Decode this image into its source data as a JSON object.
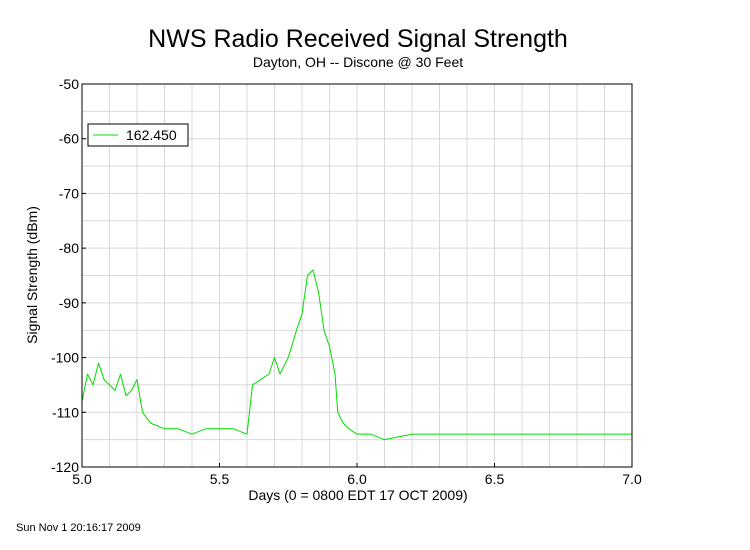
{
  "chart_data": {
    "type": "line",
    "title": "NWS Radio Received Signal Strength",
    "subtitle": "Dayton, OH -- Discone @ 30 Feet",
    "xlabel": "Days (0 = 0800 EDT 17 OCT 2009)",
    "ylabel": "Signal Strength (dBm)",
    "xlim": [
      5.0,
      7.0
    ],
    "ylim": [
      -120,
      -50
    ],
    "x_ticks": [
      "5.0",
      "5.5",
      "6.0",
      "6.5",
      "7.0"
    ],
    "y_ticks": [
      "-50",
      "-60",
      "-70",
      "-80",
      "-90",
      "-100",
      "-110",
      "-120"
    ],
    "grid": true,
    "legend_position": "top-left",
    "series": [
      {
        "name": "162.450",
        "color": "#00dd00",
        "x": [
          5.0,
          5.02,
          5.04,
          5.06,
          5.08,
          5.1,
          5.12,
          5.14,
          5.16,
          5.18,
          5.2,
          5.22,
          5.25,
          5.3,
          5.35,
          5.4,
          5.45,
          5.5,
          5.55,
          5.6,
          5.62,
          5.65,
          5.68,
          5.7,
          5.72,
          5.75,
          5.78,
          5.8,
          5.82,
          5.84,
          5.86,
          5.88,
          5.9,
          5.92,
          5.93,
          5.95,
          5.97,
          6.0,
          6.05,
          6.1,
          6.2,
          6.3,
          6.4,
          6.5,
          6.6,
          6.7,
          6.8,
          6.9,
          7.0
        ],
        "values": [
          -108,
          -103,
          -105,
          -101,
          -104,
          -105,
          -106,
          -103,
          -107,
          -106,
          -104,
          -110,
          -112,
          -113,
          -113,
          -114,
          -113,
          -113,
          -113,
          -114,
          -105,
          -104,
          -103,
          -100,
          -103,
          -100,
          -95,
          -92,
          -85,
          -84,
          -88,
          -95,
          -98,
          -103,
          -110,
          -112,
          -113,
          -114,
          -114,
          -115,
          -114,
          -114,
          -114,
          -114,
          -114,
          -114,
          -114,
          -114,
          -114
        ]
      }
    ]
  },
  "footer": "Sun Nov  1 20:16:17 2009"
}
